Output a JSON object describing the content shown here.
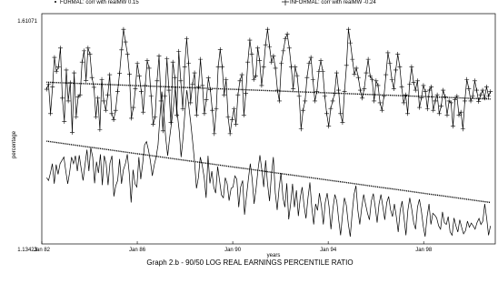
{
  "chart_data": {
    "type": "line",
    "title": "Graph 2.b - 90/50 LOG REAL EARNINGS PERCENTILE RATIO",
    "xlabel": "years",
    "ylabel": "percentage",
    "ylim": [
      1.13423,
      1.61071
    ],
    "y_tick_labels": [
      "1.61071",
      "1.13423"
    ],
    "x_tick_labels": [
      "Jan 82",
      "Jan 86",
      "Jan 90",
      "Jan 94",
      "Jan 98"
    ],
    "xlim": [
      1982.0,
      2001.0
    ],
    "x_ticks": [
      1982.0,
      1986.0,
      1990.0,
      1994.0,
      1998.0
    ],
    "legend": [
      {
        "label": "FORMAL: corr with realMW 0.15",
        "marker": "dot"
      },
      {
        "label": "INFORMAL: corr with realMW -0.24",
        "marker": "plus"
      }
    ],
    "series": [
      {
        "name": "INFORMAL",
        "marker": "plus",
        "values": [
          1.457,
          1.468,
          1.405,
          1.462,
          1.525,
          1.495,
          1.505,
          1.545,
          1.438,
          1.388,
          1.498,
          1.432,
          1.471,
          1.365,
          1.492,
          1.398,
          1.441,
          1.445,
          1.515,
          1.539,
          1.476,
          1.545,
          1.532,
          1.482,
          1.461,
          1.398,
          1.438,
          1.371,
          1.478,
          1.432,
          1.412,
          1.445,
          1.488,
          1.405,
          1.392,
          1.412,
          1.452,
          1.491,
          1.541,
          1.585,
          1.558,
          1.532,
          1.489,
          1.395,
          1.418,
          1.458,
          1.512,
          1.485,
          1.452,
          1.408,
          1.465,
          1.518,
          1.502,
          1.442,
          1.382,
          1.398,
          1.475,
          1.528,
          1.432,
          1.368,
          1.442,
          1.522,
          1.455,
          1.386,
          1.515,
          1.482,
          1.402,
          1.538,
          1.475,
          1.415,
          1.505,
          1.565,
          1.512,
          1.428,
          1.468,
          1.492,
          1.402,
          1.462,
          1.521,
          1.465,
          1.405,
          1.435,
          1.481,
          1.456,
          1.412,
          1.362,
          1.415,
          1.505,
          1.542,
          1.505,
          1.445,
          1.478,
          1.398,
          1.362,
          1.392,
          1.415,
          1.382,
          1.445,
          1.475,
          1.488,
          1.402,
          1.448,
          1.515,
          1.562,
          1.532,
          1.478,
          1.485,
          1.545,
          1.518,
          1.465,
          1.505,
          1.552,
          1.585,
          1.548,
          1.515,
          1.528,
          1.502,
          1.455,
          1.432,
          1.512,
          1.539,
          1.565,
          1.575,
          1.545,
          1.505,
          1.458,
          1.505,
          1.486,
          1.442,
          1.372,
          1.412,
          1.432,
          1.482,
          1.512,
          1.525,
          1.478,
          1.432,
          1.452,
          1.495,
          1.518,
          1.495,
          1.442,
          1.405,
          1.378,
          1.415,
          1.432,
          1.448,
          1.492,
          1.455,
          1.405,
          1.386,
          1.452,
          1.508,
          1.585,
          1.556,
          1.521,
          1.489,
          1.502,
          1.482,
          1.455,
          1.438,
          1.458,
          1.492,
          1.521,
          1.485,
          1.478,
          1.432,
          1.475,
          1.465,
          1.428,
          1.412,
          1.442,
          1.488,
          1.535,
          1.512,
          1.478,
          1.458,
          1.498,
          1.532,
          1.505,
          1.462,
          1.428,
          1.445,
          1.405,
          1.468,
          1.505,
          1.472,
          1.455,
          1.475,
          1.418,
          1.439,
          1.465,
          1.452,
          1.415,
          1.455,
          1.462,
          1.412,
          1.432,
          1.445,
          1.405,
          1.421,
          1.455,
          1.441,
          1.402,
          1.432,
          1.428,
          1.378,
          1.435,
          1.442,
          1.402,
          1.408,
          1.372,
          1.432,
          1.478,
          1.458,
          1.432,
          1.442,
          1.475,
          1.455,
          1.431,
          1.445,
          1.455,
          1.438,
          1.462,
          1.442,
          1.452
        ]
      },
      {
        "name": "FORMAL",
        "marker": "dot",
        "values": [
          1.268,
          1.262,
          1.278,
          1.298,
          1.255,
          1.296,
          1.275,
          1.298,
          1.305,
          1.312,
          1.282,
          1.255,
          1.279,
          1.312,
          1.298,
          1.315,
          1.282,
          1.316,
          1.288,
          1.262,
          1.295,
          1.328,
          1.282,
          1.332,
          1.312,
          1.256,
          1.302,
          1.278,
          1.318,
          1.252,
          1.315,
          1.298,
          1.252,
          1.299,
          1.315,
          1.228,
          1.251,
          1.262,
          1.308,
          1.255,
          1.285,
          1.298,
          1.318,
          1.278,
          1.215,
          1.285,
          1.255,
          1.248,
          1.312,
          1.265,
          1.298,
          1.338,
          1.345,
          1.328,
          1.305,
          1.272,
          1.295,
          1.312,
          1.338,
          1.398,
          1.452,
          1.405,
          1.352,
          1.315,
          1.352,
          1.385,
          1.418,
          1.462,
          1.405,
          1.368,
          1.312,
          1.352,
          1.408,
          1.455,
          1.422,
          1.385,
          1.345,
          1.302,
          1.245,
          1.268,
          1.312,
          1.295,
          1.268,
          1.225,
          1.315,
          1.256,
          1.282,
          1.248,
          1.235,
          1.292,
          1.262,
          1.231,
          1.225,
          1.268,
          1.255,
          1.219,
          1.245,
          1.248,
          1.272,
          1.265,
          1.205,
          1.248,
          1.262,
          1.189,
          1.228,
          1.265,
          1.298,
          1.265,
          1.212,
          1.245,
          1.285,
          1.316,
          1.285,
          1.248,
          1.305,
          1.255,
          1.218,
          1.275,
          1.312,
          1.236,
          1.199,
          1.245,
          1.278,
          1.225,
          1.205,
          1.256,
          1.179,
          1.212,
          1.255,
          1.205,
          1.241,
          1.186,
          1.225,
          1.248,
          1.208,
          1.181,
          1.225,
          1.258,
          1.205,
          1.168,
          1.212,
          1.198,
          1.235,
          1.208,
          1.168,
          1.215,
          1.235,
          1.206,
          1.158,
          1.201,
          1.232,
          1.218,
          1.178,
          1.145,
          1.188,
          1.225,
          1.209,
          1.169,
          1.142,
          1.192,
          1.232,
          1.251,
          1.198,
          1.168,
          1.205,
          1.232,
          1.211,
          1.192,
          1.178,
          1.218,
          1.234,
          1.205,
          1.172,
          1.212,
          1.232,
          1.206,
          1.178,
          1.215,
          1.228,
          1.199,
          1.185,
          1.212,
          1.185,
          1.152,
          1.198,
          1.218,
          1.182,
          1.145,
          1.198,
          1.225,
          1.202,
          1.172,
          1.158,
          1.205,
          1.222,
          1.198,
          1.165,
          1.142,
          1.185,
          1.212,
          1.168,
          1.192,
          1.188,
          1.182,
          1.165,
          1.158,
          1.195,
          1.172,
          1.168,
          1.185,
          1.152,
          1.145,
          1.182,
          1.165,
          1.152,
          1.178,
          1.162,
          1.148,
          1.155,
          1.175,
          1.162,
          1.171,
          1.165,
          1.158,
          1.172,
          1.181,
          1.168,
          1.175,
          1.212,
          1.182,
          1.145,
          1.165
        ]
      }
    ],
    "trend_lines": [
      {
        "series": "INFORMAL",
        "from": [
          1982.2,
          1.472
        ],
        "to": [
          2000.8,
          1.436
        ]
      },
      {
        "series": "FORMAL",
        "from": [
          1982.2,
          1.346
        ],
        "to": [
          2000.8,
          1.215
        ]
      }
    ]
  }
}
